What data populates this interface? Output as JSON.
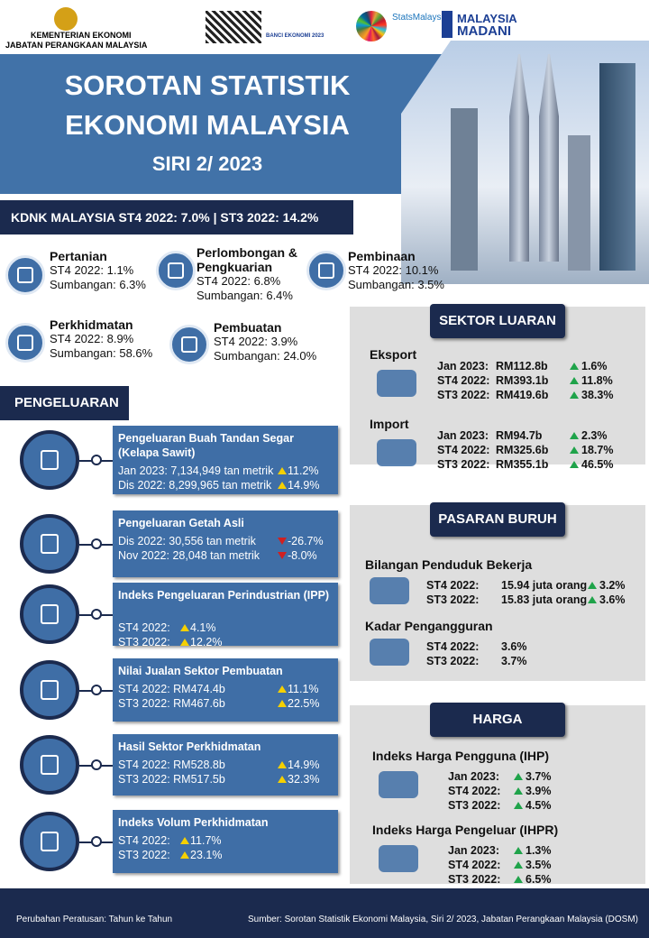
{
  "header": {
    "ministry": "KEMENTERIAN EKONOMI",
    "department": "JABATAN PERANGKAAN MALAYSIA",
    "banci": "BANCI EKONOMI 2023",
    "stats": "StatsMalaysia",
    "madani_1": "MALAYSIA",
    "madani_2": "MADANI"
  },
  "title": {
    "line1": "SOROTAN STATISTIK",
    "line2": "EKONOMI MALAYSIA",
    "series": "SIRI 2/ 2023"
  },
  "kdnk": "KDNK MALAYSIA  ST4 2022: 7.0% | ST3 2022: 14.2%",
  "sectors": [
    {
      "name": "Pertanian",
      "lines": [
        "ST4 2022: 1.1%",
        "Sumbangan: 6.3%"
      ]
    },
    {
      "name": "Perlombongan & Pengkuarian",
      "lines": [
        "ST4 2022: 6.8%",
        "Sumbangan: 6.4%"
      ]
    },
    {
      "name": "Pembinaan",
      "lines": [
        "ST4 2022: 10.1%",
        "Sumbangan: 3.5%"
      ]
    },
    {
      "name": "Perkhidmatan",
      "lines": [
        "ST4 2022: 8.9%",
        "Sumbangan: 58.6%"
      ]
    },
    {
      "name": "Pembuatan",
      "lines": [
        "ST4 2022: 3.9%",
        "Sumbangan: 24.0%"
      ]
    }
  ],
  "pengeluaran": {
    "title": "PENGELUARAN",
    "items": [
      {
        "title": "Pengeluaran Buah Tandan Segar (Kelapa Sawit)",
        "rows": [
          {
            "label": "Jan 2023: 7,134,949 tan metrik",
            "change": "11.2%",
            "dir": "up"
          },
          {
            "label": "Dis 2022: 8,299,965 tan metrik",
            "change": "14.9%",
            "dir": "up"
          }
        ]
      },
      {
        "title": "Pengeluaran Getah Asli",
        "rows": [
          {
            "label": "Dis 2022: 30,556 tan metrik",
            "change": "-26.7%",
            "dir": "down"
          },
          {
            "label": "Nov 2022: 28,048 tan metrik",
            "change": "-8.0%",
            "dir": "down"
          }
        ]
      },
      {
        "title": "Indeks Pengeluaran Perindustrian (IPP)",
        "rows": [
          {
            "label": "ST4 2022:",
            "change": "4.1%",
            "dir": "up"
          },
          {
            "label": "ST3 2022:",
            "change": "12.2%",
            "dir": "up"
          }
        ]
      },
      {
        "title": "Nilai Jualan Sektor Pembuatan",
        "rows": [
          {
            "label": "ST4 2022: RM474.4b",
            "change": "11.1%",
            "dir": "up"
          },
          {
            "label": "ST3 2022: RM467.6b",
            "change": "22.5%",
            "dir": "up"
          }
        ]
      },
      {
        "title": "Hasil Sektor Perkhidmatan",
        "rows": [
          {
            "label": "ST4 2022: RM528.8b",
            "change": "14.9%",
            "dir": "up"
          },
          {
            "label": "ST3 2022: RM517.5b",
            "change": "32.3%",
            "dir": "up"
          }
        ]
      },
      {
        "title": "Indeks Volum Perkhidmatan",
        "rows": [
          {
            "label": "ST4 2022:",
            "change": "11.7%",
            "dir": "up"
          },
          {
            "label": "ST3 2022:",
            "change": "23.1%",
            "dir": "up"
          }
        ]
      }
    ]
  },
  "sektor_luaran": {
    "title": "SEKTOR LUARAN",
    "groups": [
      {
        "name": "Eksport",
        "rows": [
          {
            "period": "Jan 2023:",
            "value": "RM112.8b",
            "change": "1.6%",
            "dir": "up"
          },
          {
            "period": "ST4 2022:",
            "value": "RM393.1b",
            "change": "11.8%",
            "dir": "up"
          },
          {
            "period": "ST3 2022:",
            "value": "RM419.6b",
            "change": "38.3%",
            "dir": "up"
          }
        ]
      },
      {
        "name": "Import",
        "rows": [
          {
            "period": "Jan 2023:",
            "value": "RM94.7b",
            "change": "2.3%",
            "dir": "up"
          },
          {
            "period": "ST4 2022:",
            "value": "RM325.6b",
            "change": "18.7%",
            "dir": "up"
          },
          {
            "period": "ST3 2022:",
            "value": "RM355.1b",
            "change": "46.5%",
            "dir": "up"
          }
        ]
      }
    ]
  },
  "pasaran_buruh": {
    "title": "PASARAN BURUH",
    "groups": [
      {
        "name": "Bilangan Penduduk Bekerja",
        "rows": [
          {
            "period": "ST4 2022:",
            "value": "15.94 juta orang",
            "change": "3.2%",
            "dir": "up"
          },
          {
            "period": "ST3 2022:",
            "value": "15.83 juta orang",
            "change": "3.6%",
            "dir": "up"
          }
        ]
      },
      {
        "name": "Kadar Pengangguran",
        "rows": [
          {
            "period": "ST4 2022:",
            "value": "3.6%"
          },
          {
            "period": "ST3 2022:",
            "value": "3.7%"
          }
        ]
      }
    ]
  },
  "harga": {
    "title": "HARGA",
    "groups": [
      {
        "name": "Indeks Harga Pengguna (IHP)",
        "rows": [
          {
            "period": "Jan 2023:",
            "change": "3.7%",
            "dir": "up"
          },
          {
            "period": "ST4 2022:",
            "change": "3.9%",
            "dir": "up"
          },
          {
            "period": "ST3 2022:",
            "change": "4.5%",
            "dir": "up"
          }
        ]
      },
      {
        "name": "Indeks Harga Pengeluar (IHPR)",
        "rows": [
          {
            "period": "Jan 2023:",
            "change": "1.3%",
            "dir": "up"
          },
          {
            "period": "ST4 2022:",
            "change": "3.5%",
            "dir": "up"
          },
          {
            "period": "ST3 2022:",
            "change": "6.5%",
            "dir": "up"
          }
        ]
      }
    ]
  },
  "footer": {
    "note": "Perubahan Peratusan: Tahun ke Tahun",
    "source": "Sumber: Sorotan Statistik Ekonomi Malaysia, Siri 2/ 2023, Jabatan Perangkaan Malaysia (DOSM)"
  }
}
